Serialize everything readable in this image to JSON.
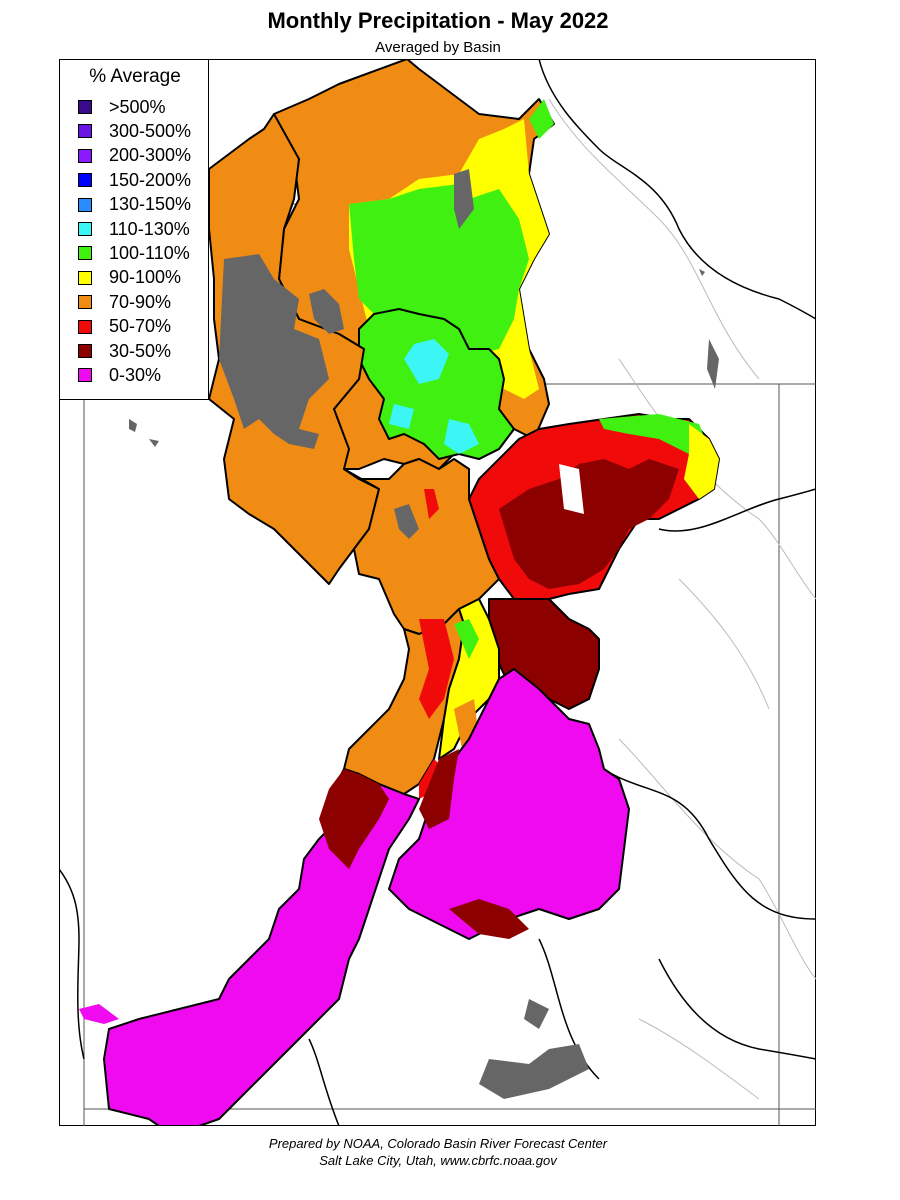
{
  "header": {
    "title": "Monthly Precipitation - May 2022",
    "subtitle": "Averaged by Basin"
  },
  "legend": {
    "title": "% Average",
    "items": [
      {
        "label": ">500%",
        "color": "#3a0a8a"
      },
      {
        "label": "300-500%",
        "color": "#6a14e6"
      },
      {
        "label": "200-300%",
        "color": "#8c1aff"
      },
      {
        "label": "150-200%",
        "color": "#0000ff"
      },
      {
        "label": "130-150%",
        "color": "#2b8cff"
      },
      {
        "label": "110-130%",
        "color": "#3cf5f5"
      },
      {
        "label": "100-110%",
        "color": "#40f010"
      },
      {
        "label": "90-100%",
        "color": "#ffff00"
      },
      {
        "label": "70-90%",
        "color": "#f08c14"
      },
      {
        "label": "50-70%",
        "color": "#f00a0a"
      },
      {
        "label": "30-50%",
        "color": "#8c0000"
      },
      {
        "label": "0-30%",
        "color": "#f00af0"
      }
    ]
  },
  "map": {
    "no_data_color": "#666666",
    "boundary_color": "#000000"
  },
  "credit": {
    "line1": "Prepared by NOAA, Colorado Basin River Forecast Center",
    "line2": "Salt Lake City, Utah, www.cbrfc.noaa.gov"
  }
}
